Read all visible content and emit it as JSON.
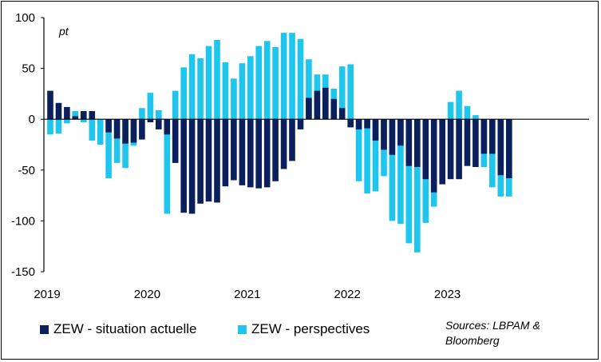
{
  "chart_data": {
    "type": "bar",
    "unit_label": "pt",
    "ylim": [
      -150,
      100
    ],
    "y_ticks": [
      -150,
      -100,
      -50,
      0,
      50,
      100
    ],
    "y_tick_labels": [
      "-150",
      "-100",
      "-50",
      "0",
      "50",
      "100"
    ],
    "x_tick_labels": [
      "2019",
      "2020",
      "2021",
      "2022",
      "2023"
    ],
    "colors": {
      "situation": "#0a1f5c",
      "perspectives": "#1ec6ee"
    },
    "series": [
      {
        "name": "ZEW - situation actuelle",
        "values": [
          28,
          16,
          12,
          3,
          8,
          8,
          0,
          -13,
          -19,
          -24,
          -23,
          -20,
          -3,
          -10,
          -15,
          -43,
          -92,
          -93,
          -83,
          -81,
          -82,
          -66,
          -60,
          -65,
          -67,
          -68,
          -67,
          -61,
          -49,
          -41,
          -10,
          21,
          28,
          31,
          20,
          11,
          -8,
          -10,
          -9,
          -21,
          -30,
          -35,
          -26,
          -46,
          -47,
          -59,
          -72,
          -64,
          -59,
          -59,
          -46,
          -47,
          -34,
          -34,
          -55,
          -58
        ]
      },
      {
        "name": "ZEW - perspectives",
        "values": [
          -15,
          -14,
          -4,
          8,
          -3,
          -21,
          -25,
          -58,
          -43,
          -48,
          -26,
          11,
          26,
          9,
          -93,
          28,
          51,
          64,
          60,
          72,
          78,
          56,
          40,
          55,
          62,
          72,
          77,
          71,
          85,
          85,
          79,
          59,
          44,
          44,
          30,
          52,
          54,
          -61,
          -73,
          -71,
          -56,
          -100,
          -103,
          -122,
          -131,
          -102,
          -86,
          -5,
          17,
          28,
          13,
          4,
          -47,
          -67,
          -76,
          -76
        ]
      }
    ],
    "legend": [
      "ZEW - situation actuelle",
      "ZEW - perspectives"
    ],
    "source_lines": [
      "Sources: LBPAM &",
      "Bloomberg"
    ]
  }
}
